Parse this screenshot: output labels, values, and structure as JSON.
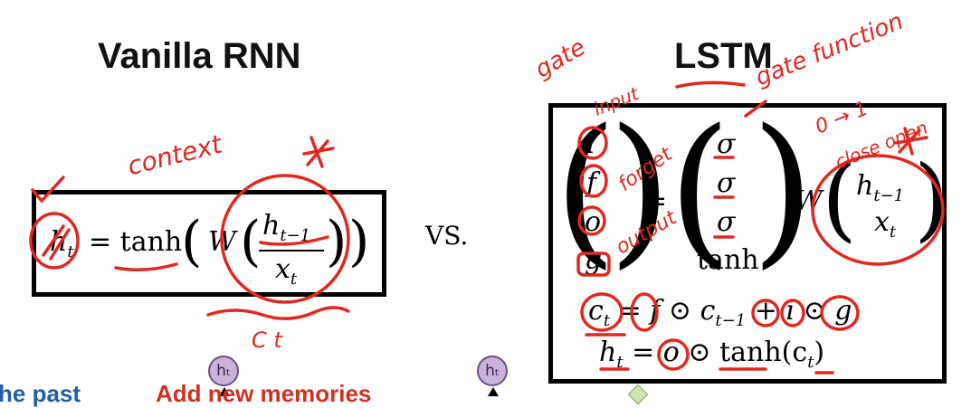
{
  "titles": {
    "left": "Vanilla RNN",
    "right": "LSTM"
  },
  "vs": "VS.",
  "rnn": {
    "lhs": "h",
    "lhs_sub": "t",
    "eq": "= tanh",
    "W": "W",
    "frac_num": "h",
    "frac_num_sub": "t−1",
    "frac_den": "x",
    "frac_den_sub": "t"
  },
  "lstm": {
    "gates": [
      "i",
      "f",
      "o",
      "g"
    ],
    "eq": "=",
    "acts": [
      "σ",
      "σ",
      "σ",
      "tanh"
    ],
    "W": "W",
    "vec_top": "h",
    "vec_top_sub": "t−1",
    "vec_bot": "x",
    "vec_bot_sub": "t",
    "cell_eq": {
      "lhs": "c",
      "lhs_sub": "t",
      "f": "f",
      "odot1": "⊙",
      "c_prev": "c",
      "c_prev_sub": "t−1",
      "plus": "+",
      "i": "i",
      "odot2": "⊙",
      "g": "g"
    },
    "hidden_eq": {
      "lhs": "h",
      "lhs_sub": "t",
      "eq": "=",
      "o": "o",
      "odot": "⊙",
      "tanh": "tanh(c",
      "tanh_sub": "t",
      "close": ")"
    }
  },
  "annotations": {
    "context": "context",
    "gate": "gate",
    "input": "input",
    "forget": "forget",
    "output": "output",
    "gate_function": "gate function",
    "zero_one": "0 → 1",
    "close_open": "close open",
    "ct": "C t"
  },
  "bottom": {
    "node_left": "hₜ",
    "node_right": "hₜ",
    "text_left": "he past",
    "text_middle": "Add new memories"
  },
  "colors": {
    "ink": "#e0281f",
    "node_fill": "#c9b3d9",
    "text_blue": "#1f5fa8",
    "text_red": "#d4301e"
  }
}
